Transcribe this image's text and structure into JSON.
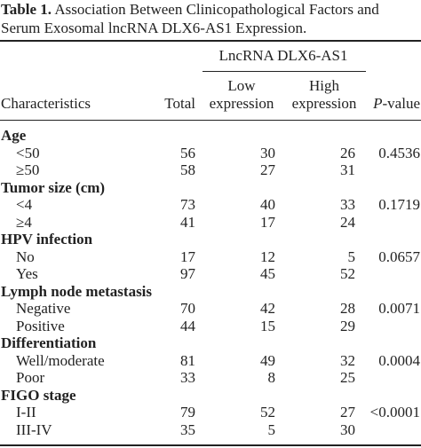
{
  "caption": {
    "label": "Table 1.",
    "text": "Association Between Clinicopathological Factors and Serum Exosomal lncRNA DLX6-AS1 Expression."
  },
  "header": {
    "group": "LncRNA DLX6-AS1",
    "characteristics": "Characteristics",
    "total": "Total",
    "low_line1": "Low",
    "low_line2": "expression",
    "high_line1": "High",
    "high_line2": "expression",
    "p_italic": "P",
    "p_rest": "-value"
  },
  "groups": [
    {
      "name": "Age",
      "rows": [
        {
          "label": "<50",
          "total": "56",
          "low": "30",
          "high": "26",
          "p": "0.4536"
        },
        {
          "label": "≥50",
          "total": "58",
          "low": "27",
          "high": "31",
          "p": ""
        }
      ]
    },
    {
      "name": "Tumor size (cm)",
      "rows": [
        {
          "label": "<4",
          "total": "73",
          "low": "40",
          "high": "33",
          "p": "0.1719"
        },
        {
          "label": "≥4",
          "total": "41",
          "low": "17",
          "high": "24",
          "p": ""
        }
      ]
    },
    {
      "name": "HPV infection",
      "rows": [
        {
          "label": "No",
          "total": "17",
          "low": "12",
          "high": "5",
          "p": "0.0657"
        },
        {
          "label": "Yes",
          "total": "97",
          "low": "45",
          "high": "52",
          "p": ""
        }
      ]
    },
    {
      "name": "Lymph node metastasis",
      "rows": [
        {
          "label": "Negative",
          "total": "70",
          "low": "42",
          "high": "28",
          "p": "0.0071"
        },
        {
          "label": "Positive",
          "total": "44",
          "low": "15",
          "high": "29",
          "p": ""
        }
      ]
    },
    {
      "name": "Differentiation",
      "rows": [
        {
          "label": "Well/moderate",
          "total": "81",
          "low": "49",
          "high": "32",
          "p": "0.0004"
        },
        {
          "label": "Poor",
          "total": "33",
          "low": "8",
          "high": "25",
          "p": ""
        }
      ]
    },
    {
      "name": "FIGO stage",
      "rows": [
        {
          "label": "I-II",
          "total": "79",
          "low": "52",
          "high": "27",
          "p": "<0.0001"
        },
        {
          "label": "III-IV",
          "total": "35",
          "low": "5",
          "high": "30",
          "p": ""
        }
      ]
    }
  ]
}
